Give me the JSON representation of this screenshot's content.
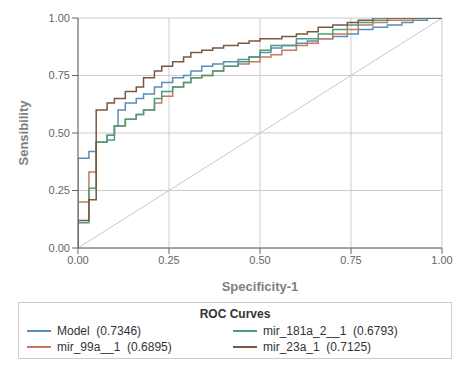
{
  "chart_data": {
    "type": "line",
    "xlabel": "Specificity-1",
    "ylabel": "Sensibility",
    "xlim": [
      0.0,
      1.0
    ],
    "ylim": [
      0.0,
      1.0
    ],
    "xticks": [
      {
        "value": 0.0,
        "label": "0.00"
      },
      {
        "value": 0.25,
        "label": "0.25"
      },
      {
        "value": 0.5,
        "label": "0.50"
      },
      {
        "value": 0.75,
        "label": "0.75"
      },
      {
        "value": 1.0,
        "label": "1.00"
      }
    ],
    "yticks": [
      {
        "value": 0.0,
        "label": "0.00"
      },
      {
        "value": 0.25,
        "label": "0.25"
      },
      {
        "value": 0.5,
        "label": "0.50"
      },
      {
        "value": 0.75,
        "label": "0.75"
      },
      {
        "value": 1.0,
        "label": "1.00"
      }
    ],
    "grid": true,
    "legend": "bottom",
    "legend_title": "ROC Curves",
    "reference_line": {
      "x": [
        0,
        1
      ],
      "values": [
        0,
        1
      ],
      "color": "#c8c8c8"
    },
    "series": [
      {
        "name": "Model  (0.7346)",
        "color": "#5b8db8",
        "x": [
          0.0,
          0.0,
          0.03,
          0.03,
          0.05,
          0.05,
          0.08,
          0.08,
          0.1,
          0.1,
          0.11,
          0.11,
          0.13,
          0.13,
          0.16,
          0.16,
          0.18,
          0.18,
          0.21,
          0.21,
          0.23,
          0.23,
          0.26,
          0.26,
          0.29,
          0.29,
          0.31,
          0.31,
          0.34,
          0.34,
          0.37,
          0.37,
          0.4,
          0.4,
          0.44,
          0.44,
          0.47,
          0.47,
          0.5,
          0.5,
          0.53,
          0.53,
          0.56,
          0.56,
          0.6,
          0.6,
          0.63,
          0.63,
          0.66,
          0.66,
          0.7,
          0.7,
          0.74,
          0.74,
          0.77,
          0.77,
          0.81,
          0.81,
          0.85,
          0.85,
          0.89,
          0.89,
          0.92,
          0.92,
          0.96,
          0.96,
          1.0
        ],
        "values": [
          0.0,
          0.39,
          0.39,
          0.42,
          0.42,
          0.46,
          0.46,
          0.47,
          0.47,
          0.53,
          0.53,
          0.6,
          0.6,
          0.63,
          0.63,
          0.65,
          0.65,
          0.67,
          0.67,
          0.7,
          0.7,
          0.72,
          0.72,
          0.74,
          0.74,
          0.75,
          0.75,
          0.77,
          0.77,
          0.79,
          0.79,
          0.8,
          0.8,
          0.81,
          0.81,
          0.82,
          0.82,
          0.83,
          0.83,
          0.85,
          0.85,
          0.87,
          0.87,
          0.88,
          0.88,
          0.89,
          0.89,
          0.9,
          0.9,
          0.91,
          0.91,
          0.92,
          0.92,
          0.93,
          0.93,
          0.95,
          0.95,
          0.96,
          0.96,
          0.97,
          0.97,
          0.98,
          0.98,
          0.99,
          0.99,
          1.0,
          1.0
        ]
      },
      {
        "name": "mir_99a__1  (0.6895)",
        "color": "#c87860",
        "x": [
          0.0,
          0.0,
          0.03,
          0.03,
          0.05,
          0.05,
          0.08,
          0.08,
          0.1,
          0.1,
          0.13,
          0.13,
          0.16,
          0.16,
          0.18,
          0.18,
          0.21,
          0.21,
          0.23,
          0.23,
          0.26,
          0.26,
          0.29,
          0.29,
          0.31,
          0.31,
          0.34,
          0.34,
          0.37,
          0.37,
          0.4,
          0.4,
          0.44,
          0.44,
          0.47,
          0.47,
          0.5,
          0.5,
          0.53,
          0.53,
          0.56,
          0.56,
          0.6,
          0.6,
          0.63,
          0.63,
          0.66,
          0.66,
          0.7,
          0.7,
          0.74,
          0.74,
          0.77,
          0.77,
          0.81,
          0.81,
          0.85,
          0.85,
          0.92,
          0.92,
          0.96,
          0.96,
          1.0
        ],
        "values": [
          0.0,
          0.2,
          0.2,
          0.33,
          0.33,
          0.46,
          0.46,
          0.49,
          0.49,
          0.53,
          0.53,
          0.56,
          0.56,
          0.58,
          0.58,
          0.6,
          0.6,
          0.63,
          0.63,
          0.66,
          0.66,
          0.7,
          0.7,
          0.72,
          0.72,
          0.74,
          0.74,
          0.75,
          0.75,
          0.77,
          0.77,
          0.79,
          0.79,
          0.8,
          0.8,
          0.81,
          0.81,
          0.83,
          0.83,
          0.84,
          0.84,
          0.86,
          0.86,
          0.88,
          0.88,
          0.89,
          0.89,
          0.91,
          0.91,
          0.93,
          0.93,
          0.95,
          0.95,
          0.97,
          0.97,
          0.98,
          0.98,
          0.99,
          0.99,
          1.0,
          1.0,
          1.0,
          1.0
        ]
      },
      {
        "name": "mir_181a_2__1  (0.6793)",
        "color": "#4a9e7a",
        "x": [
          0.0,
          0.0,
          0.03,
          0.03,
          0.05,
          0.05,
          0.08,
          0.08,
          0.1,
          0.1,
          0.13,
          0.13,
          0.16,
          0.16,
          0.18,
          0.18,
          0.21,
          0.21,
          0.23,
          0.23,
          0.26,
          0.26,
          0.29,
          0.29,
          0.31,
          0.31,
          0.34,
          0.34,
          0.37,
          0.37,
          0.4,
          0.4,
          0.44,
          0.44,
          0.47,
          0.47,
          0.5,
          0.5,
          0.53,
          0.53,
          0.6,
          0.6,
          0.66,
          0.66,
          0.7,
          0.7,
          0.74,
          0.74,
          0.77,
          0.77,
          0.81,
          0.81,
          0.85,
          0.85,
          0.89,
          0.89,
          0.96,
          0.96,
          1.0
        ],
        "values": [
          0.0,
          0.11,
          0.11,
          0.26,
          0.26,
          0.46,
          0.46,
          0.49,
          0.49,
          0.53,
          0.53,
          0.56,
          0.56,
          0.58,
          0.58,
          0.6,
          0.6,
          0.65,
          0.65,
          0.68,
          0.68,
          0.7,
          0.7,
          0.72,
          0.72,
          0.74,
          0.74,
          0.75,
          0.75,
          0.77,
          0.77,
          0.79,
          0.79,
          0.81,
          0.81,
          0.83,
          0.83,
          0.86,
          0.86,
          0.88,
          0.88,
          0.91,
          0.91,
          0.93,
          0.93,
          0.95,
          0.95,
          0.97,
          0.97,
          0.98,
          0.98,
          0.99,
          0.99,
          1.0,
          1.0,
          1.0,
          1.0,
          1.0,
          1.0
        ]
      },
      {
        "name": "mir_23a_1  (0.7125)",
        "color": "#7a5840",
        "x": [
          0.0,
          0.0,
          0.03,
          0.03,
          0.05,
          0.05,
          0.08,
          0.08,
          0.1,
          0.1,
          0.13,
          0.13,
          0.16,
          0.16,
          0.18,
          0.18,
          0.21,
          0.21,
          0.23,
          0.23,
          0.26,
          0.26,
          0.29,
          0.29,
          0.31,
          0.31,
          0.34,
          0.34,
          0.37,
          0.37,
          0.4,
          0.4,
          0.44,
          0.44,
          0.47,
          0.47,
          0.5,
          0.5,
          0.53,
          0.53,
          0.56,
          0.56,
          0.6,
          0.6,
          0.63,
          0.63,
          0.66,
          0.66,
          0.7,
          0.7,
          0.74,
          0.74,
          0.77,
          0.77,
          0.81,
          0.81,
          0.85,
          0.85,
          0.89,
          0.89,
          0.96,
          0.96,
          1.0
        ],
        "values": [
          0.0,
          0.12,
          0.12,
          0.21,
          0.21,
          0.6,
          0.6,
          0.63,
          0.63,
          0.65,
          0.65,
          0.68,
          0.68,
          0.7,
          0.7,
          0.74,
          0.74,
          0.77,
          0.77,
          0.79,
          0.79,
          0.81,
          0.81,
          0.83,
          0.83,
          0.85,
          0.85,
          0.86,
          0.86,
          0.87,
          0.87,
          0.88,
          0.88,
          0.89,
          0.89,
          0.9,
          0.9,
          0.91,
          0.91,
          0.91,
          0.91,
          0.92,
          0.92,
          0.93,
          0.93,
          0.94,
          0.94,
          0.96,
          0.96,
          0.97,
          0.97,
          0.98,
          0.98,
          0.99,
          0.99,
          1.0,
          1.0,
          1.0,
          1.0,
          1.0,
          1.0,
          1.0,
          1.0
        ]
      }
    ]
  }
}
